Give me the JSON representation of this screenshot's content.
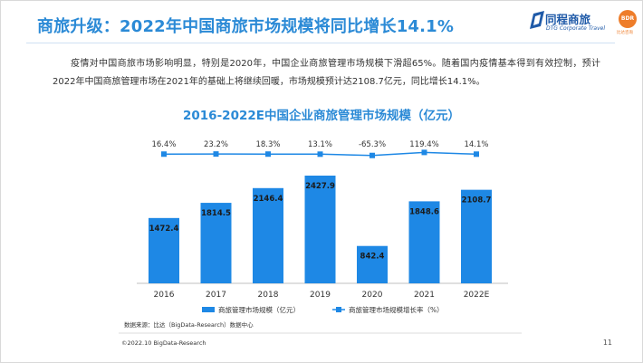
{
  "title": "商旅升级：2022年中国商旅市场规模将同比增长14.1%",
  "logo": {
    "name": "同程商旅",
    "sub": "DTG Corporate Travel",
    "badge": "BDR",
    "badge_sub": "比达咨询"
  },
  "intro": "疫情对中国商旅市场影响明显，特别是2020年，中国企业商旅管理市场规模下滑超65%。随着国内疫情基本得到有效控制，预计2022年中国商旅管理市场在2021年的基础上将继续回暖，市场规模预计达2108.7亿元，同比增长14.1%。",
  "colors": {
    "accent": "#2b8ad6",
    "bar": "#1e88e5",
    "line": "#1e88e5",
    "badge": "#ee7d2a"
  },
  "chart_data": {
    "type": "bar",
    "title": "2016-2022E中国企业商旅管理市场规模（亿元）",
    "categories": [
      "2016",
      "2017",
      "2018",
      "2019",
      "2020",
      "2021",
      "2022E"
    ],
    "series": [
      {
        "name": "商旅管理市场规模（亿元）",
        "type": "bar",
        "values": [
          1472.4,
          1814.5,
          2146.4,
          2427.9,
          842.4,
          1848.6,
          2108.7
        ],
        "labels": [
          "1472.4",
          "1814.5",
          "2146.4",
          "2427.9",
          "842.4",
          "1848.6",
          "2108.7"
        ]
      },
      {
        "name": "商旅管理市场规模增长率（%）",
        "type": "line",
        "values": [
          16.4,
          23.2,
          18.3,
          13.1,
          -65.3,
          119.4,
          14.1
        ],
        "labels": [
          "16.4%",
          "23.2%",
          "18.3%",
          "13.1%",
          "-65.3%",
          "119.4%",
          "14.1%"
        ]
      }
    ],
    "ylim": [
      0,
      2600
    ],
    "y2lim": [
      -300,
      140
    ],
    "grid": false,
    "legend": "bottom"
  },
  "source": "数据来源：比达（BigData-Research）数据中心",
  "copyright": "©2022.10 BigData-Research",
  "page_number": "11"
}
